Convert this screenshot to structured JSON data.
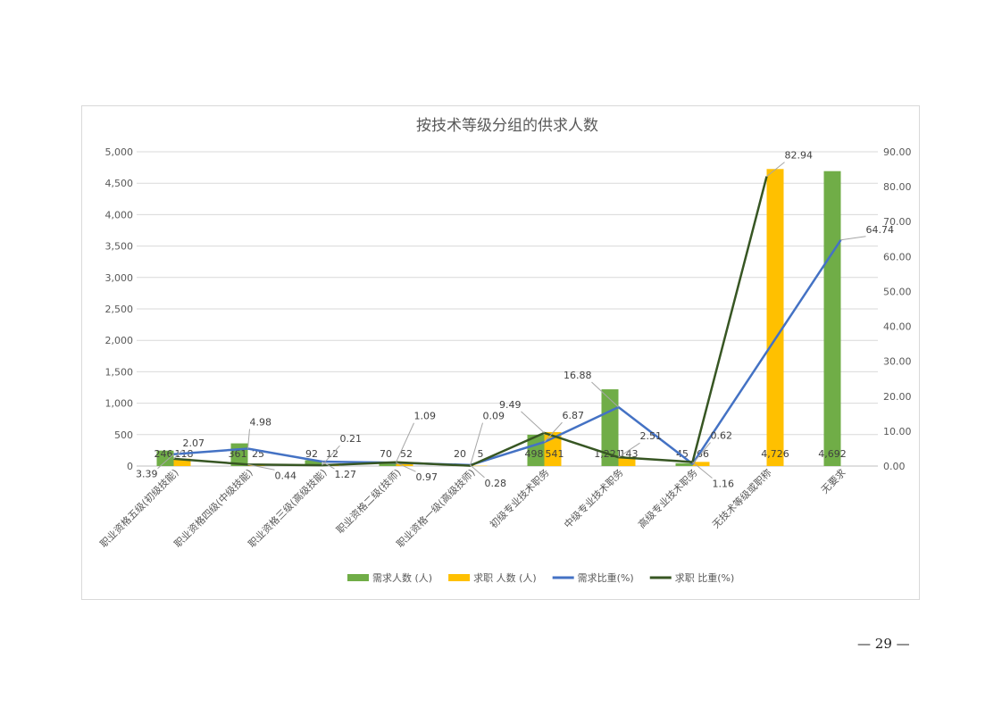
{
  "page": {
    "footer_dash": "—",
    "number": "29"
  },
  "chart_data": {
    "type": "bar",
    "title": "按技术等级分组的供求人数",
    "categories": [
      "职业资格五级(初级技能)",
      "职业资格四级(中级技能)",
      "职业资格三级(高级技能)",
      "职业资格二级(技师)",
      "职业资格一级(高级技师)",
      "初级专业技术职务",
      "中级专业技术职务",
      "高级专业技术职务",
      "无技术等级或职称",
      "无要求"
    ],
    "series": [
      {
        "name": "需求人数 (人)",
        "kind": "bar",
        "axis": "left",
        "color": "#70ad47",
        "values": [
          246,
          361,
          92,
          70,
          20,
          498,
          1221,
          45,
          0,
          4692
        ],
        "labels": [
          "246",
          "361",
          "92",
          "70",
          "20",
          "498",
          "1,221",
          "45",
          "",
          "4,692"
        ]
      },
      {
        "name": "求职 人数 (人)",
        "kind": "bar",
        "axis": "left",
        "color": "#ffc000",
        "values": [
          118,
          25,
          12,
          52,
          5,
          541,
          143,
          66,
          4726,
          0
        ],
        "labels": [
          "118",
          "25",
          "12",
          "52",
          "5",
          "541",
          "143",
          "66",
          "4,726",
          ""
        ]
      },
      {
        "name": "需求比重(%)",
        "kind": "line",
        "axis": "right",
        "color": "#4472c4",
        "values": [
          3.39,
          4.98,
          1.27,
          0.97,
          0.28,
          6.87,
          16.88,
          0.62,
          null,
          64.74
        ],
        "labels": [
          "3.39",
          "4.98",
          "1.27",
          "0.97",
          "0.28",
          "6.87",
          "16.88",
          "0.62",
          "",
          "64.74"
        ]
      },
      {
        "name": "求职 比重(%)",
        "kind": "line",
        "axis": "right",
        "color": "#375623",
        "values": [
          2.07,
          0.44,
          0.21,
          1.09,
          0.09,
          9.49,
          2.51,
          1.16,
          82.94,
          null
        ],
        "labels": [
          "2.07",
          "0.44",
          "0.21",
          "1.09",
          "0.09",
          "9.49",
          "2.51",
          "1.16",
          "82.94",
          ""
        ]
      }
    ],
    "y_left": {
      "min": 0,
      "max": 5000,
      "step": 500,
      "ticks": [
        "0",
        "500",
        "1,000",
        "1,500",
        "2,000",
        "2,500",
        "3,000",
        "3,500",
        "4,000",
        "4,500",
        "5,000"
      ]
    },
    "y_right": {
      "min": 0,
      "max": 90,
      "step": 10,
      "ticks": [
        "0.00",
        "10.00",
        "20.00",
        "30.00",
        "40.00",
        "50.00",
        "60.00",
        "70.00",
        "80.00",
        "90.00"
      ]
    },
    "grid": true,
    "legend": "bottom"
  }
}
